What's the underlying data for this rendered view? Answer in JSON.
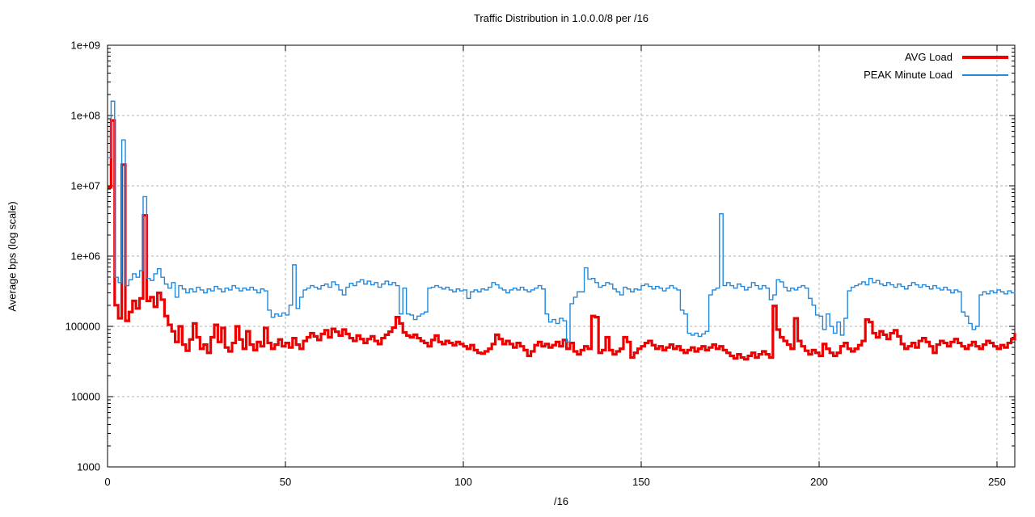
{
  "chart": {
    "title": "Traffic Distribution in 1.0.0.0/8 per /16",
    "xlabel": "/16",
    "ylabel": "Average bps (log scale)"
  },
  "chart_data": {
    "type": "line",
    "line_style": "steps-post",
    "title": "Traffic Distribution in 1.0.0.0/8 per /16",
    "xlabel": "/16",
    "ylabel": "Average bps (log scale)",
    "x_start": 0,
    "x_step": 1,
    "x_range": [
      0,
      255
    ],
    "y_range": [
      1000,
      1000000000
    ],
    "y_scale": "log10",
    "grid": true,
    "grid_color": "#b0b0b0",
    "legend_position": "top-right",
    "x_ticks": [
      {
        "value": 0,
        "label": "0"
      },
      {
        "value": 50,
        "label": "50"
      },
      {
        "value": 100,
        "label": "100"
      },
      {
        "value": 150,
        "label": "150"
      },
      {
        "value": 200,
        "label": "200"
      },
      {
        "value": 250,
        "label": "250"
      }
    ],
    "y_ticks": [
      {
        "value": 1000,
        "label": "1000"
      },
      {
        "value": 10000,
        "label": "10000"
      },
      {
        "value": 100000,
        "label": "100000"
      },
      {
        "value": 1000000,
        "label": "1e+06"
      },
      {
        "value": 10000000,
        "label": "1e+07"
      },
      {
        "value": 100000000,
        "label": "1e+08"
      },
      {
        "value": 1000000000,
        "label": "1e+09"
      }
    ],
    "y_minor_tick_multipliers": [
      2,
      3,
      4,
      5,
      6,
      7,
      8,
      9
    ],
    "series": [
      {
        "name": "AVG Load",
        "color": "#ee0000",
        "width": 3.2,
        "values": [
          9500000,
          85000000,
          200000,
          130000,
          20000000,
          120000,
          160000,
          230000,
          180000,
          250000,
          3800000,
          230000,
          260000,
          190000,
          300000,
          240000,
          140000,
          105000,
          85000,
          60000,
          100000,
          55000,
          45000,
          65000,
          110000,
          70000,
          48000,
          55000,
          42000,
          70000,
          105000,
          60000,
          95000,
          50000,
          44000,
          58000,
          100000,
          65000,
          48000,
          85000,
          55000,
          46000,
          60000,
          52000,
          95000,
          58000,
          48000,
          55000,
          65000,
          52000,
          58000,
          50000,
          68000,
          55000,
          48000,
          62000,
          70000,
          80000,
          72000,
          64000,
          78000,
          88000,
          70000,
          92000,
          84000,
          74000,
          90000,
          78000,
          68000,
          62000,
          74000,
          66000,
          58000,
          66000,
          72000,
          62000,
          56000,
          68000,
          76000,
          84000,
          96000,
          135000,
          110000,
          82000,
          74000,
          70000,
          76000,
          68000,
          62000,
          58000,
          52000,
          64000,
          74000,
          60000,
          56000,
          62000,
          58000,
          54000,
          60000,
          56000,
          52000,
          48000,
          54000,
          46000,
          42000,
          41000,
          44000,
          48000,
          56000,
          76000,
          66000,
          56000,
          62000,
          56000,
          50000,
          58000,
          52000,
          46000,
          38000,
          44000,
          54000,
          60000,
          52000,
          56000,
          50000,
          54000,
          60000,
          52000,
          64000,
          48000,
          58000,
          44000,
          40000,
          46000,
          52000,
          48000,
          140000,
          135000,
          42000,
          46000,
          70000,
          46000,
          40000,
          44000,
          48000,
          70000,
          60000,
          36000,
          42000,
          48000,
          52000,
          58000,
          62000,
          54000,
          48000,
          52000,
          46000,
          50000,
          55000,
          48000,
          52000,
          46000,
          42000,
          46000,
          50000,
          44000,
          48000,
          52000,
          46000,
          50000,
          55000,
          48000,
          52000,
          46000,
          42000,
          38000,
          35000,
          40000,
          36000,
          34000,
          38000,
          42000,
          36000,
          40000,
          44000,
          40000,
          36000,
          195000,
          90000,
          70000,
          62000,
          55000,
          48000,
          130000,
          62000,
          52000,
          45000,
          40000,
          46000,
          42000,
          38000,
          56000,
          48000,
          42000,
          38000,
          42000,
          52000,
          58000,
          48000,
          44000,
          48000,
          54000,
          62000,
          125000,
          115000,
          80000,
          70000,
          85000,
          76000,
          66000,
          80000,
          88000,
          72000,
          56000,
          48000,
          52000,
          58000,
          50000,
          62000,
          68000,
          60000,
          52000,
          42000,
          55000,
          62000,
          58000,
          52000,
          60000,
          66000,
          58000,
          52000,
          48000,
          54000,
          60000,
          52000,
          48000,
          55000,
          62000,
          58000,
          52000,
          48000,
          54000,
          50000,
          58000,
          66000,
          80000
        ]
      },
      {
        "name": "PEAK Minute Load",
        "color": "#2288dd",
        "width": 1.4,
        "values": [
          25000000,
          160000000,
          500000,
          420000,
          45000000,
          380000,
          460000,
          560000,
          500000,
          620000,
          7000000,
          480000,
          450000,
          560000,
          660000,
          500000,
          400000,
          350000,
          420000,
          260000,
          380000,
          340000,
          300000,
          340000,
          310000,
          360000,
          330000,
          300000,
          340000,
          320000,
          370000,
          340000,
          310000,
          350000,
          330000,
          380000,
          350000,
          320000,
          350000,
          330000,
          360000,
          330000,
          300000,
          340000,
          320000,
          170000,
          135000,
          150000,
          140000,
          155000,
          145000,
          200000,
          750000,
          180000,
          260000,
          330000,
          350000,
          380000,
          360000,
          340000,
          380000,
          400000,
          360000,
          430000,
          390000,
          330000,
          280000,
          360000,
          410000,
          380000,
          430000,
          460000,
          400000,
          440000,
          390000,
          420000,
          360000,
          400000,
          440000,
          390000,
          420000,
          380000,
          150000,
          350000,
          150000,
          145000,
          125000,
          140000,
          150000,
          160000,
          350000,
          360000,
          380000,
          360000,
          340000,
          360000,
          330000,
          310000,
          340000,
          320000,
          330000,
          250000,
          310000,
          330000,
          310000,
          340000,
          330000,
          360000,
          420000,
          390000,
          350000,
          330000,
          300000,
          330000,
          350000,
          330000,
          360000,
          330000,
          310000,
          330000,
          350000,
          380000,
          340000,
          150000,
          115000,
          125000,
          110000,
          130000,
          120000,
          60000,
          210000,
          260000,
          310000,
          310000,
          680000,
          470000,
          480000,
          420000,
          360000,
          380000,
          420000,
          400000,
          340000,
          310000,
          280000,
          360000,
          340000,
          310000,
          340000,
          330000,
          380000,
          400000,
          370000,
          340000,
          370000,
          350000,
          320000,
          350000,
          380000,
          350000,
          330000,
          170000,
          150000,
          80000,
          75000,
          80000,
          72000,
          78000,
          85000,
          280000,
          330000,
          350000,
          4000000,
          380000,
          420000,
          380000,
          350000,
          400000,
          370000,
          330000,
          360000,
          420000,
          380000,
          340000,
          380000,
          350000,
          240000,
          280000,
          460000,
          430000,
          360000,
          320000,
          350000,
          330000,
          360000,
          380000,
          350000,
          250000,
          200000,
          145000,
          140000,
          90000,
          150000,
          100000,
          80000,
          115000,
          75000,
          130000,
          320000,
          360000,
          380000,
          400000,
          430000,
          390000,
          480000,
          420000,
          450000,
          400000,
          380000,
          420000,
          390000,
          360000,
          400000,
          370000,
          340000,
          380000,
          420000,
          390000,
          360000,
          390000,
          370000,
          340000,
          380000,
          350000,
          330000,
          360000,
          330000,
          300000,
          330000,
          310000,
          160000,
          140000,
          110000,
          90000,
          100000,
          280000,
          310000,
          290000,
          320000,
          300000,
          330000,
          310000,
          290000,
          320000,
          300000,
          310000
        ]
      }
    ]
  },
  "legend": {
    "items": [
      {
        "label": "AVG Load"
      },
      {
        "label": "PEAK Minute Load"
      }
    ]
  }
}
